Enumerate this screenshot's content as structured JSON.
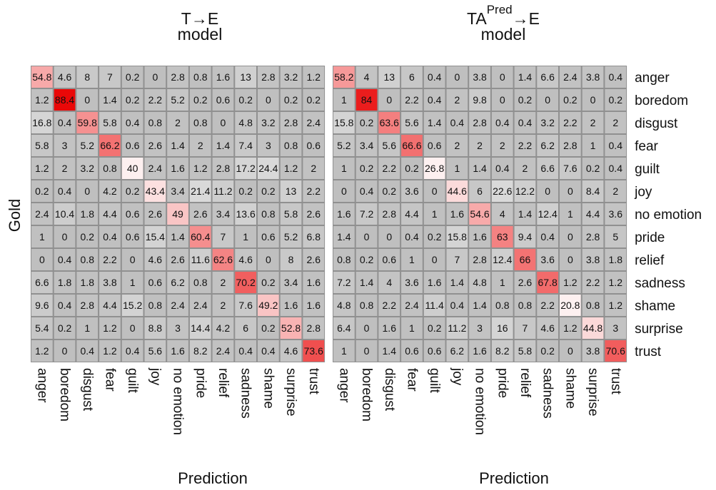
{
  "chart_data": [
    {
      "type": "heatmap",
      "title_lines": [
        "T→E",
        "model"
      ],
      "xlabel": "Prediction",
      "ylabel": "Gold",
      "x_categories": [
        "anger",
        "boredom",
        "disgust",
        "fear",
        "guilt",
        "joy",
        "no emotion",
        "pride",
        "relief",
        "sadness",
        "shame",
        "surprise",
        "trust"
      ],
      "y_categories": [
        "anger",
        "boredom",
        "disgust",
        "fear",
        "guilt",
        "joy",
        "no emotion",
        "pride",
        "relief",
        "sadness",
        "shame",
        "surprise",
        "trust"
      ],
      "values": [
        [
          "54.8",
          "4.6",
          "8",
          "7",
          "0.2",
          "0",
          "2.8",
          "0.8",
          "1.6",
          "13",
          "2.8",
          "3.2",
          "1.2"
        ],
        [
          "1.2",
          "88.4",
          "0",
          "1.4",
          "0.2",
          "2.2",
          "5.2",
          "0.2",
          "0.6",
          "0.2",
          "0",
          "0.2",
          "0.2"
        ],
        [
          "16.8",
          "0.4",
          "59.8",
          "5.8",
          "0.4",
          "0.8",
          "2",
          "0.8",
          "0",
          "4.8",
          "3.2",
          "2.8",
          "2.4"
        ],
        [
          "5.8",
          "3",
          "5.2",
          "66.2",
          "0.6",
          "2.6",
          "1.4",
          "2",
          "1.4",
          "7.4",
          "3",
          "0.8",
          "0.6"
        ],
        [
          "1.2",
          "2",
          "3.2",
          "0.8",
          "40",
          "2.4",
          "1.6",
          "1.2",
          "2.8",
          "17.2",
          "24.4",
          "1.2",
          "2"
        ],
        [
          "0.2",
          "0.4",
          "0",
          "4.2",
          "0.2",
          "43.4",
          "3.4",
          "21.4",
          "11.2",
          "0.2",
          "0.2",
          "13",
          "2.2"
        ],
        [
          "2.4",
          "10.4",
          "1.8",
          "4.4",
          "0.6",
          "2.6",
          "49",
          "2.6",
          "3.4",
          "13.6",
          "0.8",
          "5.8",
          "2.6"
        ],
        [
          "1",
          "0",
          "0.2",
          "0.4",
          "0.6",
          "15.4",
          "1.4",
          "60.4",
          "7",
          "1",
          "0.6",
          "5.2",
          "6.8"
        ],
        [
          "0",
          "0.4",
          "0.8",
          "2.2",
          "0",
          "4.6",
          "2.6",
          "11.6",
          "62.6",
          "4.6",
          "0",
          "8",
          "2.6"
        ],
        [
          "6.6",
          "1.8",
          "1.8",
          "3.8",
          "1",
          "0.6",
          "6.2",
          "0.8",
          "2",
          "70.2",
          "0.2",
          "3.4",
          "1.6"
        ],
        [
          "9.6",
          "0.4",
          "2.8",
          "4.4",
          "15.2",
          "0.8",
          "2.4",
          "2.4",
          "2",
          "7.6",
          "49.2",
          "1.6",
          "1.6"
        ],
        [
          "5.4",
          "0.2",
          "1",
          "1.2",
          "0",
          "8.8",
          "3",
          "14.4",
          "4.2",
          "6",
          "0.2",
          "52.8",
          "2.8"
        ],
        [
          "1.2",
          "0",
          "0.4",
          "1.2",
          "0.4",
          "5.6",
          "1.6",
          "8.2",
          "2.4",
          "0.4",
          "0.4",
          "4.6",
          "73.6"
        ]
      ]
    },
    {
      "type": "heatmap",
      "title_lines": [
        "TA",
        "Pred",
        "→E",
        "model"
      ],
      "xlabel": "Prediction",
      "ylabel": "",
      "x_categories": [
        "anger",
        "boredom",
        "disgust",
        "fear",
        "guilt",
        "joy",
        "no emotion",
        "pride",
        "relief",
        "sadness",
        "shame",
        "surprise",
        "trust"
      ],
      "y_categories": [
        "anger",
        "boredom",
        "disgust",
        "fear",
        "guilt",
        "joy",
        "no emotion",
        "pride",
        "relief",
        "sadness",
        "shame",
        "surprise",
        "trust"
      ],
      "values": [
        [
          "58.2",
          "4",
          "13",
          "6",
          "0.4",
          "0",
          "3.8",
          "0",
          "1.4",
          "6.6",
          "2.4",
          "3.8",
          "0.4"
        ],
        [
          "1",
          "84",
          "0",
          "2.2",
          "0.4",
          "2",
          "9.8",
          "0",
          "0.2",
          "0",
          "0.2",
          "0",
          "0.2"
        ],
        [
          "15.8",
          "0.2",
          "63.6",
          "5.6",
          "1.4",
          "0.4",
          "2.8",
          "0.4",
          "0.4",
          "3.2",
          "2.2",
          "2",
          "2"
        ],
        [
          "5.2",
          "3.4",
          "5.6",
          "66.6",
          "0.6",
          "2",
          "2",
          "2",
          "2.2",
          "6.2",
          "2.8",
          "1",
          "0.4"
        ],
        [
          "1",
          "0.2",
          "2.2",
          "0.2",
          "26.8",
          "1",
          "1.4",
          "0.4",
          "2",
          "6.6",
          "7.6",
          "0.2",
          "0.4"
        ],
        [
          "0",
          "0.4",
          "0.2",
          "3.6",
          "0",
          "44.6",
          "6",
          "22.6",
          "12.2",
          "0",
          "0",
          "8.4",
          "2"
        ],
        [
          "1.6",
          "7.2",
          "2.8",
          "4.4",
          "1",
          "1.6",
          "54.6",
          "4",
          "1.4",
          "12.4",
          "1",
          "4.4",
          "3.6"
        ],
        [
          "1.4",
          "0",
          "0",
          "0.4",
          "0.2",
          "15.8",
          "1.6",
          "63",
          "9.4",
          "0.4",
          "0",
          "2.8",
          "5"
        ],
        [
          "0.8",
          "0.2",
          "0.6",
          "1",
          "0",
          "7",
          "2.8",
          "12.4",
          "66",
          "3.6",
          "0",
          "3.8",
          "1.8"
        ],
        [
          "7.2",
          "1.4",
          "4",
          "3.6",
          "1.6",
          "1.4",
          "4.8",
          "1",
          "2.6",
          "67.8",
          "1.2",
          "2.2",
          "1.2"
        ],
        [
          "4.8",
          "0.8",
          "2.2",
          "2.4",
          "11.4",
          "0.4",
          "1.4",
          "0.8",
          "0.8",
          "2.2",
          "20.8",
          "0.8",
          "1.2"
        ],
        [
          "6.4",
          "0",
          "1.6",
          "1",
          "0.2",
          "11.2",
          "3",
          "16",
          "7",
          "4.6",
          "1.2",
          "44.8",
          "3"
        ],
        [
          "1",
          "0",
          "1.4",
          "0.6",
          "0.6",
          "6.2",
          "1.6",
          "8.2",
          "5.8",
          "0.2",
          "0",
          "3.8",
          "70.6"
        ]
      ]
    }
  ],
  "colors": {
    "off_diagonal_low": "#bfbfbf",
    "off_diagonal_high": "#d9d9d9",
    "diagonal_light": "#fdf0f0",
    "diagonal_strong": "#e90000",
    "grid_line": "#909090",
    "background": "#ffffff"
  }
}
